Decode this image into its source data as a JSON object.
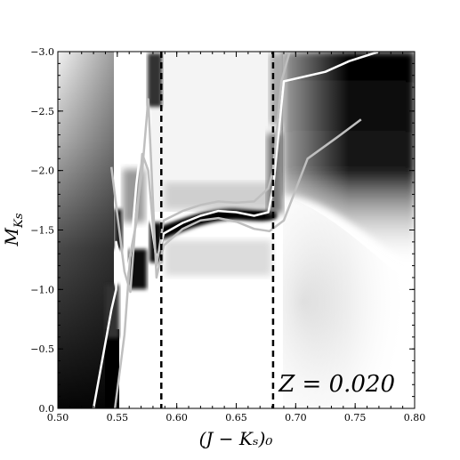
{
  "chart_data": {
    "type": "heatmap",
    "title": "",
    "xlabel": "(J − Kₛ)₀",
    "ylabel": "M_Ks",
    "xlim": [
      0.5,
      0.8
    ],
    "ylim": [
      0.0,
      -3.0
    ],
    "y_inverted": true,
    "x_ticks": [
      "0.50",
      "0.55",
      "0.60",
      "0.65",
      "0.70",
      "0.75",
      "0.80"
    ],
    "y_ticks": [
      "0.0",
      "−0.5",
      "−1.0",
      "−1.5",
      "−2.0",
      "−2.5",
      "−3.0"
    ],
    "colormap": "grayscale (white = low, black = high density)",
    "grid": false,
    "annotation": "Z = 0.020",
    "vertical_dashed_lines": [
      0.587,
      0.681
    ],
    "series": [
      {
        "color": "#ffffff",
        "x": [
          0.53,
          0.545,
          0.549,
          0.549,
          0.556,
          0.561,
          0.566,
          0.571,
          0.576,
          0.578,
          0.583,
          0.589,
          0.605,
          0.62,
          0.635,
          0.65,
          0.665,
          0.677,
          0.681,
          0.69,
          0.725,
          0.745,
          0.77
        ],
        "y": [
          0.0,
          -0.83,
          -1.0,
          -1.4,
          -1.08,
          -1.28,
          -1.88,
          -2.3,
          -2.56,
          -1.6,
          -1.25,
          -1.47,
          -1.56,
          -1.62,
          -1.66,
          -1.65,
          -1.62,
          -1.65,
          -1.85,
          -2.75,
          -2.83,
          -2.92,
          -3.0
        ]
      },
      {
        "color": "#bfbfbf",
        "x": [
          0.545,
          0.551,
          0.556,
          0.561,
          0.566,
          0.571,
          0.576,
          0.583,
          0.589,
          0.605,
          0.62,
          0.635,
          0.65,
          0.665,
          0.678,
          0.69,
          0.71,
          0.735,
          0.755
        ],
        "y": [
          -2.03,
          -1.55,
          -1.15,
          -0.98,
          -1.65,
          -2.0,
          -2.6,
          -1.1,
          -1.37,
          -1.51,
          -1.58,
          -1.6,
          -1.57,
          -1.51,
          -1.49,
          -1.58,
          -2.1,
          -2.28,
          -2.43
        ]
      },
      {
        "color": "#bfbfbf",
        "x": [
          0.548,
          0.556,
          0.561,
          0.566,
          0.571,
          0.576,
          0.583,
          0.589,
          0.605,
          0.62,
          0.635,
          0.65,
          0.665,
          0.677,
          0.681,
          0.688,
          0.695
        ],
        "y": [
          0.0,
          -0.62,
          -1.3,
          -1.56,
          -2.14,
          -2.0,
          -1.2,
          -1.58,
          -1.66,
          -1.71,
          -1.74,
          -1.73,
          -1.74,
          -1.85,
          -2.0,
          -2.75,
          -3.0
        ]
      }
    ]
  }
}
